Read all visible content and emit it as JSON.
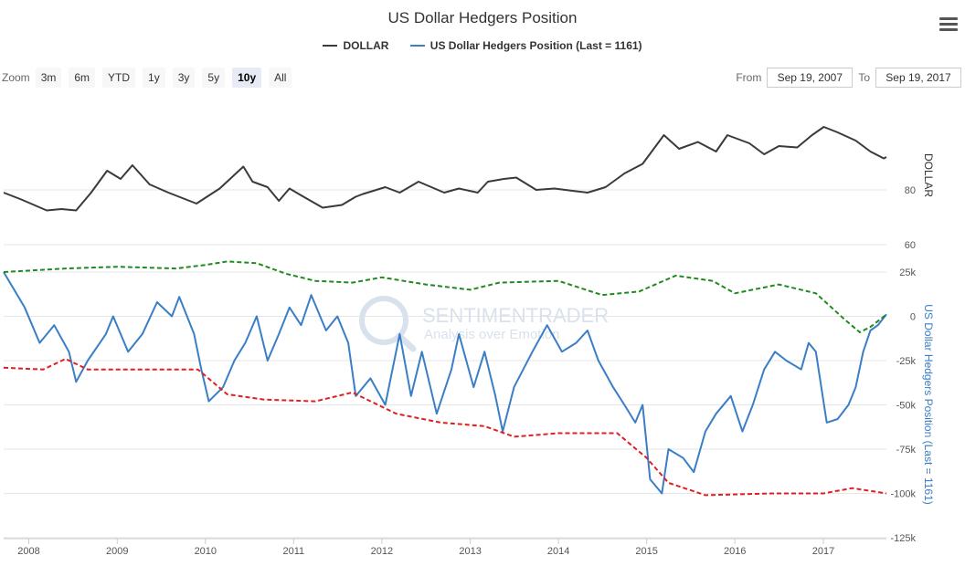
{
  "title": "US Dollar Hedgers Position",
  "legend": [
    {
      "name": "DOLLAR",
      "color": "#3a3a3a"
    },
    {
      "name": "US Dollar Hedgers Position (Last = 1161)",
      "color": "#3a7ec6"
    }
  ],
  "zoom": {
    "label": "Zoom",
    "buttons": [
      "3m",
      "6m",
      "YTD",
      "1y",
      "3y",
      "5y",
      "10y",
      "All"
    ],
    "active": "10y"
  },
  "range": {
    "from_label": "From",
    "from": "Sep 19, 2007",
    "to_label": "To",
    "to": "Sep 19, 2017"
  },
  "watermark": {
    "name": "SENTIMENTRADER",
    "tagline": "Analysis over Emotion"
  },
  "colors": {
    "dollar": "#3a3a3a",
    "hedgers": "#3a7ec6",
    "upper_band": "#1f8a1f",
    "lower_band": "#e02020"
  },
  "chart_data": {
    "type": "line",
    "x_axis": {
      "type": "datetime",
      "range": [
        "2007-09-19",
        "2017-09-19"
      ],
      "tick_labels": [
        "2008",
        "2009",
        "2010",
        "2011",
        "2012",
        "2013",
        "2014",
        "2015",
        "2016",
        "2017"
      ]
    },
    "panels": [
      {
        "ylabel": "DOLLAR",
        "ylim": [
          50,
          110
        ],
        "tick_labels": [
          "60",
          "80"
        ],
        "series": [
          {
            "name": "DOLLAR",
            "color": "#3a3a3a",
            "points": [
              [
                "2007-09-19",
                79
              ],
              [
                "2007-12-01",
                76.5
              ],
              [
                "2008-03-15",
                72.5
              ],
              [
                "2008-05-15",
                73
              ],
              [
                "2008-07-15",
                72.5
              ],
              [
                "2008-09-15",
                79
              ],
              [
                "2008-11-20",
                87
              ],
              [
                "2009-01-15",
                84
              ],
              [
                "2009-03-05",
                89
              ],
              [
                "2009-05-15",
                82
              ],
              [
                "2009-08-01",
                79
              ],
              [
                "2009-11-25",
                75
              ],
              [
                "2010-03-01",
                80.5
              ],
              [
                "2010-06-07",
                88.5
              ],
              [
                "2010-07-15",
                83
              ],
              [
                "2010-09-15",
                81
              ],
              [
                "2010-11-01",
                76
              ],
              [
                "2010-12-15",
                80.5
              ],
              [
                "2011-02-01",
                78
              ],
              [
                "2011-05-01",
                73.5
              ],
              [
                "2011-07-20",
                74.5
              ],
              [
                "2011-09-15",
                77.5
              ],
              [
                "2011-10-15",
                78.5
              ],
              [
                "2012-01-15",
                81
              ],
              [
                "2012-03-15",
                79
              ],
              [
                "2012-06-01",
                83
              ],
              [
                "2012-09-15",
                79
              ],
              [
                "2012-11-15",
                80.5
              ],
              [
                "2013-02-01",
                79
              ],
              [
                "2013-03-15",
                83
              ],
              [
                "2013-05-20",
                84
              ],
              [
                "2013-07-10",
                84.5
              ],
              [
                "2013-10-01",
                80
              ],
              [
                "2013-12-15",
                80.5
              ],
              [
                "2014-03-15",
                79.5
              ],
              [
                "2014-05-01",
                79
              ],
              [
                "2014-07-15",
                81
              ],
              [
                "2014-10-01",
                86
              ],
              [
                "2014-12-15",
                89.5
              ],
              [
                "2015-03-13",
                100
              ],
              [
                "2015-05-15",
                95
              ],
              [
                "2015-08-01",
                97.5
              ],
              [
                "2015-10-15",
                94
              ],
              [
                "2015-12-01",
                100
              ],
              [
                "2016-03-01",
                97
              ],
              [
                "2016-05-01",
                93
              ],
              [
                "2016-07-01",
                96
              ],
              [
                "2016-09-15",
                95.5
              ],
              [
                "2016-11-15",
                100
              ],
              [
                "2017-01-03",
                103
              ],
              [
                "2017-03-01",
                101
              ],
              [
                "2017-05-15",
                98
              ],
              [
                "2017-07-15",
                94
              ],
              [
                "2017-09-08",
                91.5
              ],
              [
                "2017-09-19",
                92
              ]
            ]
          }
        ]
      },
      {
        "ylabel": "US Dollar Hedgers Position (Last = 1161)",
        "ylim": [
          -125000,
          25000
        ],
        "tick_labels": [
          "25k",
          "0",
          "-25k",
          "-50k",
          "-75k",
          "-100k",
          "-125k"
        ],
        "series": [
          {
            "name": "US Dollar Hedgers Position (Last = 1161)",
            "color": "#3a7ec6",
            "points": [
              [
                "2007-09-19",
                25000
              ],
              [
                "2007-12-15",
                5000
              ],
              [
                "2008-02-15",
                -15000
              ],
              [
                "2008-04-15",
                -5000
              ],
              [
                "2008-06-15",
                -20000
              ],
              [
                "2008-07-15",
                -37000
              ],
              [
                "2008-09-01",
                -25000
              ],
              [
                "2008-11-15",
                -10000
              ],
              [
                "2008-12-15",
                0
              ],
              [
                "2009-02-15",
                -20000
              ],
              [
                "2009-04-15",
                -10000
              ],
              [
                "2009-06-15",
                8000
              ],
              [
                "2009-08-15",
                0
              ],
              [
                "2009-09-15",
                11000
              ],
              [
                "2009-11-15",
                -10000
              ],
              [
                "2009-12-15",
                -30000
              ],
              [
                "2010-01-15",
                -48000
              ],
              [
                "2010-03-15",
                -40000
              ],
              [
                "2010-05-01",
                -25000
              ],
              [
                "2010-06-15",
                -15000
              ],
              [
                "2010-08-01",
                0
              ],
              [
                "2010-09-15",
                -25000
              ],
              [
                "2010-11-01",
                -10000
              ],
              [
                "2010-12-15",
                5000
              ],
              [
                "2011-02-01",
                -5000
              ],
              [
                "2011-03-15",
                12000
              ],
              [
                "2011-05-15",
                -8000
              ],
              [
                "2011-07-01",
                0
              ],
              [
                "2011-08-15",
                -15000
              ],
              [
                "2011-09-15",
                -45000
              ],
              [
                "2011-11-15",
                -35000
              ],
              [
                "2012-01-15",
                -50000
              ],
              [
                "2012-03-15",
                -10000
              ],
              [
                "2012-05-01",
                -45000
              ],
              [
                "2012-06-15",
                -20000
              ],
              [
                "2012-08-15",
                -55000
              ],
              [
                "2012-10-15",
                -30000
              ],
              [
                "2012-11-15",
                -10000
              ],
              [
                "2013-01-15",
                -40000
              ],
              [
                "2013-03-01",
                -20000
              ],
              [
                "2013-04-15",
                -45000
              ],
              [
                "2013-05-15",
                -65000
              ],
              [
                "2013-07-01",
                -40000
              ],
              [
                "2013-09-15",
                -20000
              ],
              [
                "2013-11-15",
                -5000
              ],
              [
                "2014-01-15",
                -20000
              ],
              [
                "2014-03-15",
                -15000
              ],
              [
                "2014-05-01",
                -8000
              ],
              [
                "2014-06-15",
                -25000
              ],
              [
                "2014-08-15",
                -40000
              ],
              [
                "2014-10-01",
                -50000
              ],
              [
                "2014-11-15",
                -60000
              ],
              [
                "2014-12-15",
                -50000
              ],
              [
                "2015-01-15",
                -92000
              ],
              [
                "2015-03-05",
                -100000
              ],
              [
                "2015-04-01",
                -75000
              ],
              [
                "2015-06-01",
                -80000
              ],
              [
                "2015-07-15",
                -88000
              ],
              [
                "2015-09-01",
                -65000
              ],
              [
                "2015-10-15",
                -55000
              ],
              [
                "2015-12-15",
                -45000
              ],
              [
                "2016-02-01",
                -65000
              ],
              [
                "2016-03-15",
                -50000
              ],
              [
                "2016-05-01",
                -30000
              ],
              [
                "2016-06-15",
                -20000
              ],
              [
                "2016-08-01",
                -25000
              ],
              [
                "2016-10-01",
                -30000
              ],
              [
                "2016-11-01",
                -15000
              ],
              [
                "2016-12-01",
                -20000
              ],
              [
                "2017-01-15",
                -60000
              ],
              [
                "2017-03-01",
                -58000
              ],
              [
                "2017-04-15",
                -50000
              ],
              [
                "2017-05-15",
                -40000
              ],
              [
                "2017-06-15",
                -20000
              ],
              [
                "2017-07-15",
                -8000
              ],
              [
                "2017-08-15",
                -5000
              ],
              [
                "2017-09-19",
                1161
              ]
            ]
          },
          {
            "name": "upper band",
            "color": "#1f8a1f",
            "dashed": true,
            "points": [
              [
                "2007-09-19",
                25000
              ],
              [
                "2008-06-01",
                27000
              ],
              [
                "2009-01-01",
                28000
              ],
              [
                "2009-09-01",
                27000
              ],
              [
                "2010-01-01",
                29000
              ],
              [
                "2010-04-01",
                31000
              ],
              [
                "2010-08-01",
                30000
              ],
              [
                "2010-12-01",
                24000
              ],
              [
                "2011-04-01",
                20000
              ],
              [
                "2011-09-01",
                19000
              ],
              [
                "2012-01-01",
                22000
              ],
              [
                "2012-07-01",
                18000
              ],
              [
                "2013-01-01",
                15000
              ],
              [
                "2013-05-01",
                19000
              ],
              [
                "2014-01-01",
                20000
              ],
              [
                "2014-07-01",
                12000
              ],
              [
                "2014-12-01",
                14000
              ],
              [
                "2015-05-01",
                23000
              ],
              [
                "2015-10-01",
                20000
              ],
              [
                "2016-01-01",
                13000
              ],
              [
                "2016-07-01",
                18000
              ],
              [
                "2016-12-01",
                13000
              ],
              [
                "2017-04-01",
                -2000
              ],
              [
                "2017-06-01",
                -9000
              ],
              [
                "2017-07-15",
                -6000
              ],
              [
                "2017-09-19",
                1000
              ]
            ]
          },
          {
            "name": "lower band",
            "color": "#e02020",
            "dashed": true,
            "points": [
              [
                "2007-09-19",
                -29000
              ],
              [
                "2008-03-01",
                -30000
              ],
              [
                "2008-06-01",
                -24000
              ],
              [
                "2008-09-01",
                -30000
              ],
              [
                "2009-09-01",
                -30000
              ],
              [
                "2009-12-01",
                -30000
              ],
              [
                "2010-04-01",
                -44000
              ],
              [
                "2010-09-01",
                -47000
              ],
              [
                "2011-04-01",
                -48000
              ],
              [
                "2011-09-01",
                -43000
              ],
              [
                "2012-03-01",
                -55000
              ],
              [
                "2012-09-01",
                -60000
              ],
              [
                "2013-03-01",
                -62000
              ],
              [
                "2013-07-01",
                -68000
              ],
              [
                "2014-01-01",
                -66000
              ],
              [
                "2014-09-01",
                -66000
              ],
              [
                "2015-01-01",
                -80000
              ],
              [
                "2015-04-01",
                -94000
              ],
              [
                "2015-09-01",
                -101000
              ],
              [
                "2016-06-01",
                -100000
              ],
              [
                "2017-01-01",
                -100000
              ],
              [
                "2017-05-01",
                -97000
              ],
              [
                "2017-09-19",
                -100000
              ]
            ]
          }
        ]
      }
    ]
  }
}
